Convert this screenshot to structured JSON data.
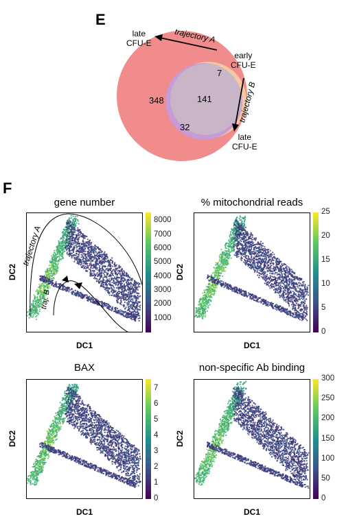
{
  "panel_e": {
    "letter": "E",
    "late_a": [
      "late",
      "CFU-E"
    ],
    "early": [
      "early",
      "CFU-E"
    ],
    "late_b": [
      "late",
      "CFU-E"
    ],
    "trajectory_a": "trajectory A",
    "trajectory_b": "trajectory B",
    "counts": {
      "big_only": "348",
      "overlap": "141",
      "early_only": "7",
      "lateb_only": "32"
    },
    "colors": {
      "big": "#f08c8b",
      "lateb": "#c69bd6",
      "early": "#f3c9a0",
      "overlap": "#c9b5c8"
    }
  },
  "panel_f": {
    "letter": "F",
    "plots": [
      {
        "title": "gene number",
        "xlabel": "DC1",
        "ylabel": "DC2",
        "cb_ticks": [
          "8000",
          "7000",
          "6000",
          "5000",
          "4000",
          "3000",
          "2000",
          "1000"
        ],
        "cb_values": [
          8000,
          7000,
          6000,
          5000,
          4000,
          3000,
          2000,
          1000
        ],
        "cb_range": [
          0,
          8600
        ],
        "trajectory_a": "trajectory A",
        "traj_b": "traj. B"
      },
      {
        "title": "% mitochondrial reads",
        "xlabel": "DC1",
        "ylabel": "DC2",
        "cb_ticks": [
          "25",
          "20",
          "15",
          "10",
          "5",
          "0"
        ],
        "cb_values": [
          25,
          20,
          15,
          10,
          5,
          0
        ],
        "cb_range": [
          0,
          25
        ]
      },
      {
        "title": "BAX",
        "xlabel": "DC1",
        "ylabel": "DC2",
        "cb_ticks": [
          "7",
          "6",
          "5",
          "4",
          "3",
          "2",
          "1",
          "0"
        ],
        "cb_values": [
          7,
          6,
          5,
          4,
          3,
          2,
          1,
          0
        ],
        "cb_range": [
          0,
          7.6
        ]
      },
      {
        "title": "non-specific Ab binding",
        "xlabel": "DC1",
        "ylabel": "DC2",
        "cb_ticks": [
          "300",
          "250",
          "200",
          "150",
          "100",
          "50",
          "0"
        ],
        "cb_values": [
          300,
          250,
          200,
          150,
          100,
          50,
          0
        ],
        "cb_range": [
          0,
          300
        ]
      }
    ],
    "viridis": [
      "#440154",
      "#3b528b",
      "#21918c",
      "#5ec962",
      "#fde725"
    ]
  }
}
